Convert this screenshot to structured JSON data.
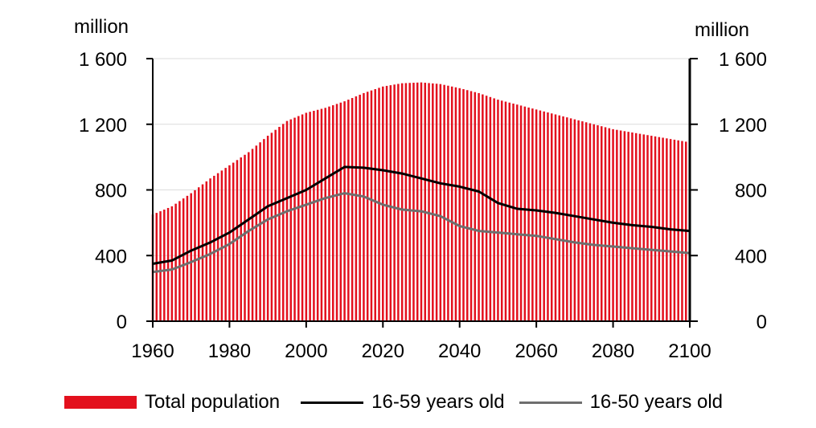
{
  "chart_data": {
    "type": "bar+line",
    "title": "",
    "left_axis_unit": "million",
    "right_axis_unit": "million",
    "ylim": [
      0,
      1600
    ],
    "yticks": [
      0,
      400,
      800,
      1200,
      1600
    ],
    "ytick_labels": [
      "0",
      "400",
      "800",
      "1 200",
      "1 600"
    ],
    "xlim": [
      1960,
      2100
    ],
    "xticks": [
      1960,
      1980,
      2000,
      2020,
      2040,
      2060,
      2080,
      2100
    ],
    "xtick_labels": [
      "1960",
      "1980",
      "2000",
      "2020",
      "2040",
      "2060",
      "2080",
      "2100"
    ],
    "series": [
      {
        "name": "Total population",
        "kind": "bar",
        "color": "#e3101d",
        "points": [
          [
            1960,
            650
          ],
          [
            1965,
            700
          ],
          [
            1970,
            780
          ],
          [
            1975,
            870
          ],
          [
            1980,
            950
          ],
          [
            1985,
            1030
          ],
          [
            1990,
            1130
          ],
          [
            1995,
            1220
          ],
          [
            2000,
            1270
          ],
          [
            2005,
            1300
          ],
          [
            2010,
            1340
          ],
          [
            2015,
            1390
          ],
          [
            2020,
            1430
          ],
          [
            2025,
            1450
          ],
          [
            2030,
            1455
          ],
          [
            2035,
            1445
          ],
          [
            2040,
            1420
          ],
          [
            2045,
            1390
          ],
          [
            2050,
            1350
          ],
          [
            2055,
            1320
          ],
          [
            2060,
            1290
          ],
          [
            2065,
            1260
          ],
          [
            2070,
            1230
          ],
          [
            2075,
            1200
          ],
          [
            2080,
            1170
          ],
          [
            2085,
            1150
          ],
          [
            2090,
            1130
          ],
          [
            2095,
            1110
          ],
          [
            2100,
            1090
          ]
        ]
      },
      {
        "name": "16-59 years old",
        "kind": "line",
        "color": "#000000",
        "points": [
          [
            1960,
            350
          ],
          [
            1965,
            370
          ],
          [
            1970,
            430
          ],
          [
            1975,
            480
          ],
          [
            1980,
            540
          ],
          [
            1985,
            620
          ],
          [
            1990,
            700
          ],
          [
            1995,
            750
          ],
          [
            2000,
            800
          ],
          [
            2005,
            870
          ],
          [
            2010,
            940
          ],
          [
            2015,
            935
          ],
          [
            2020,
            920
          ],
          [
            2025,
            900
          ],
          [
            2030,
            870
          ],
          [
            2035,
            840
          ],
          [
            2040,
            820
          ],
          [
            2045,
            790
          ],
          [
            2050,
            720
          ],
          [
            2055,
            685
          ],
          [
            2060,
            675
          ],
          [
            2065,
            660
          ],
          [
            2070,
            640
          ],
          [
            2075,
            620
          ],
          [
            2080,
            600
          ],
          [
            2085,
            585
          ],
          [
            2090,
            575
          ],
          [
            2095,
            560
          ],
          [
            2100,
            550
          ]
        ]
      },
      {
        "name": "16-50 years old",
        "kind": "line",
        "color": "#6e6e6e",
        "points": [
          [
            1960,
            300
          ],
          [
            1965,
            315
          ],
          [
            1970,
            360
          ],
          [
            1975,
            410
          ],
          [
            1980,
            470
          ],
          [
            1985,
            550
          ],
          [
            1990,
            620
          ],
          [
            1995,
            670
          ],
          [
            2000,
            710
          ],
          [
            2005,
            750
          ],
          [
            2010,
            780
          ],
          [
            2015,
            760
          ],
          [
            2020,
            710
          ],
          [
            2025,
            680
          ],
          [
            2030,
            670
          ],
          [
            2035,
            640
          ],
          [
            2040,
            580
          ],
          [
            2045,
            550
          ],
          [
            2050,
            540
          ],
          [
            2055,
            530
          ],
          [
            2060,
            520
          ],
          [
            2065,
            500
          ],
          [
            2070,
            480
          ],
          [
            2075,
            465
          ],
          [
            2080,
            455
          ],
          [
            2085,
            445
          ],
          [
            2090,
            435
          ],
          [
            2095,
            425
          ],
          [
            2100,
            415
          ]
        ]
      }
    ],
    "legend": [
      "Total population",
      "16-59 years old",
      "16-50 years old"
    ],
    "legend_position": "bottom"
  }
}
